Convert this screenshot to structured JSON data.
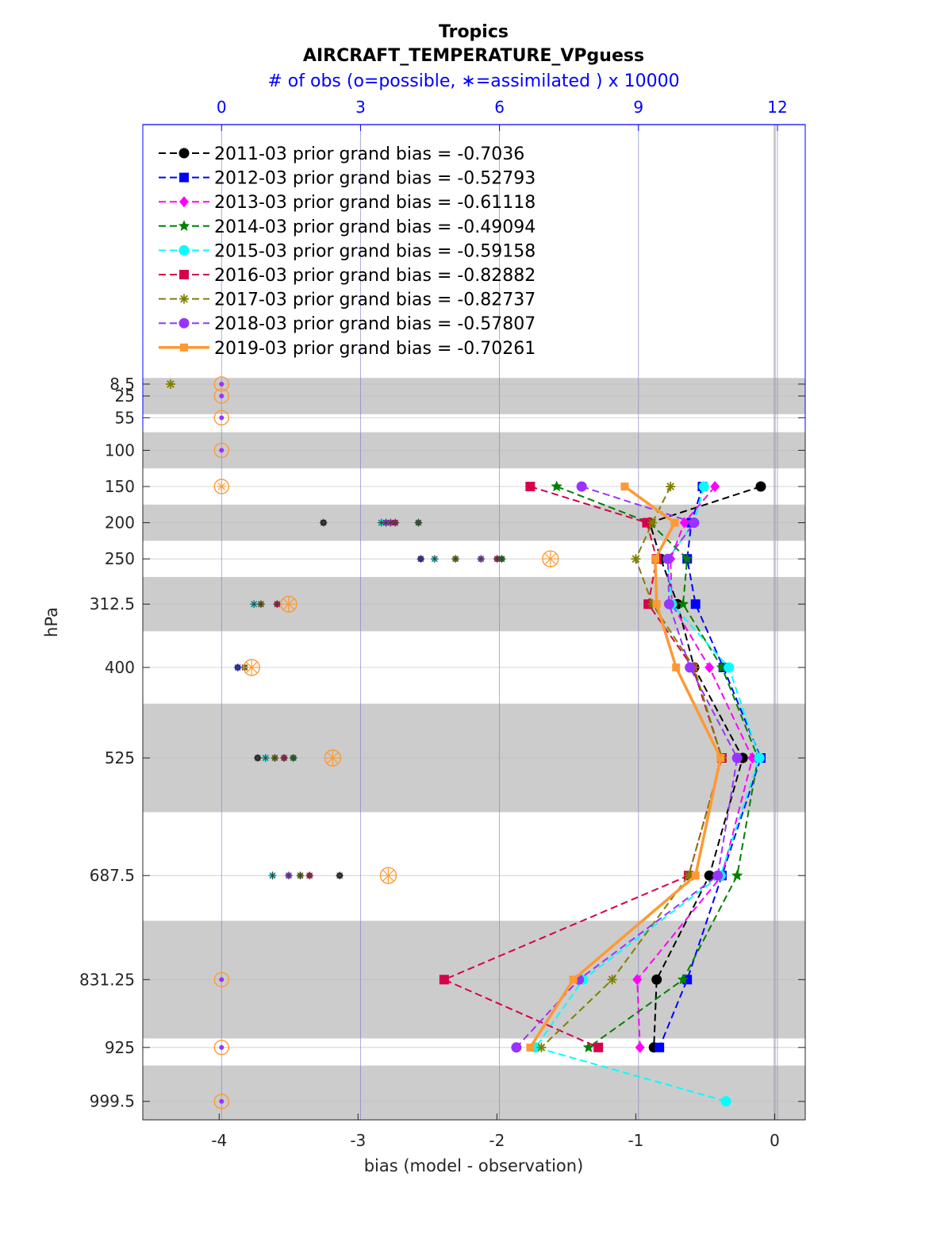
{
  "chart_data": {
    "type": "line",
    "title": "Tropics",
    "subtitle": "AIRCRAFT_TEMPERATURE_VPguess",
    "top_axis_label": "# of obs (o=possible, ∗=assimilated ) x 10000",
    "xlabel": "bias (model - observation)",
    "ylabel": "hPa",
    "xlim": [
      -4.55,
      0.22
    ],
    "x_ticks": [
      -4,
      -3,
      -2,
      -1,
      0
    ],
    "top_xlim": [
      -1.7,
      12.6
    ],
    "top_ticks": [
      0,
      3,
      6,
      9,
      12
    ],
    "y_scale": "linear, inverted",
    "ylim": [
      1025,
      -350
    ],
    "y_levels": [
      8.5,
      25,
      55,
      100,
      150,
      200,
      250,
      312.5,
      400,
      525,
      687.5,
      831.25,
      925,
      999.5
    ],
    "y_tick_labels": [
      "8.5",
      "25",
      "55",
      "100",
      "150",
      "200",
      "250",
      "312.5",
      "400",
      "525",
      "687.5",
      "831.25",
      "925",
      "999.5"
    ],
    "level_bands": [
      [
        0,
        50
      ],
      [
        75,
        125
      ],
      [
        175,
        225
      ],
      [
        275,
        350
      ],
      [
        450,
        600
      ],
      [
        750,
        912.5
      ],
      [
        950,
        1025
      ]
    ],
    "legend_position": "top-left",
    "series": [
      {
        "name": "2011-03 prior grand bias = -0.7036",
        "color": "#000000",
        "marker": "circle",
        "values": [
          null,
          null,
          null,
          null,
          -0.1,
          -0.9,
          -0.82,
          -0.7,
          -0.58,
          -0.23,
          -0.47,
          -0.85,
          -0.87,
          null
        ],
        "obs_assimilated": [
          null,
          null,
          null,
          null,
          null,
          2.2,
          null,
          null,
          null,
          null,
          null,
          null,
          null,
          null
        ]
      },
      {
        "name": "2012-03 prior grand bias = -0.52793",
        "color": "#0000ff",
        "marker": "square",
        "values": [
          null,
          null,
          null,
          null,
          -0.52,
          -0.6,
          -0.63,
          -0.57,
          -0.37,
          -0.1,
          -0.38,
          -0.63,
          -0.83,
          null
        ],
        "obs_assimilated": [
          null,
          null,
          null,
          null,
          null,
          null,
          null,
          null,
          null,
          null,
          null,
          null,
          null,
          null
        ]
      },
      {
        "name": "2013-03 prior grand bias = -0.61118",
        "color": "#ff00ff",
        "marker": "diamond",
        "values": [
          null,
          null,
          null,
          null,
          -0.43,
          -0.65,
          -0.75,
          -0.74,
          -0.47,
          -0.16,
          -0.38,
          -0.99,
          -0.97,
          null
        ],
        "obs_assimilated": [
          null,
          null,
          null,
          null,
          null,
          null,
          null,
          null,
          null,
          null,
          null,
          null,
          null,
          null
        ]
      },
      {
        "name": "2014-03 prior grand bias = -0.49094",
        "color": "#008000",
        "marker": "star",
        "values": [
          null,
          null,
          null,
          null,
          -1.57,
          -0.9,
          -0.63,
          -0.66,
          -0.38,
          -0.12,
          -0.27,
          -0.66,
          -1.34,
          null
        ],
        "obs_assimilated": [
          null,
          null,
          null,
          null,
          null,
          null,
          null,
          null,
          null,
          null,
          null,
          null,
          null,
          null
        ]
      },
      {
        "name": "2015-03 prior grand bias = -0.59158",
        "color": "#00ffff",
        "marker": "circle",
        "values": [
          null,
          null,
          null,
          null,
          -0.51,
          -0.58,
          -0.77,
          -0.74,
          -0.33,
          -0.11,
          -0.39,
          -1.38,
          -1.72,
          -0.35
        ],
        "obs_assimilated": [
          null,
          null,
          null,
          null,
          null,
          null,
          null,
          null,
          null,
          null,
          null,
          null,
          null,
          null
        ]
      },
      {
        "name": "2016-03 prior grand bias = -0.82882",
        "color": "#d6004c",
        "marker": "square",
        "values": [
          null,
          null,
          null,
          null,
          -1.76,
          -0.92,
          -0.85,
          -0.91,
          -0.59,
          -0.38,
          -0.62,
          -2.38,
          -1.27,
          null
        ],
        "obs_assimilated": [
          null,
          null,
          null,
          null,
          null,
          null,
          null,
          null,
          null,
          null,
          null,
          null,
          null,
          null
        ]
      },
      {
        "name": "2017-03 prior grand bias = -0.82737",
        "color": "#808000",
        "marker": "asterisk",
        "values": [
          -4.35,
          null,
          null,
          null,
          -0.75,
          -0.88,
          -1.0,
          -0.88,
          -0.58,
          -0.38,
          -0.62,
          -1.17,
          -1.68,
          null
        ],
        "obs_assimilated": [
          null,
          null,
          null,
          null,
          null,
          null,
          null,
          null,
          null,
          null,
          null,
          null,
          null,
          null
        ]
      },
      {
        "name": "2018-03 prior grand bias = -0.57807",
        "color": "#9933ff",
        "marker": "circle",
        "values": [
          null,
          null,
          null,
          null,
          -1.39,
          -0.58,
          -0.77,
          -0.76,
          -0.61,
          -0.27,
          -0.41,
          -1.41,
          -1.86,
          null
        ],
        "obs_assimilated": [
          null,
          null,
          null,
          null,
          null,
          null,
          null,
          null,
          null,
          null,
          null,
          null,
          null,
          null
        ]
      },
      {
        "name": "2019-03 prior grand bias = -0.70261",
        "color": "#ff9933",
        "marker": "square",
        "linewidth": 3.5,
        "values": [
          null,
          null,
          null,
          null,
          -1.08,
          -0.72,
          -0.86,
          -0.85,
          -0.71,
          -0.39,
          -0.57,
          -1.45,
          -1.76,
          null
        ],
        "obs_assimilated": [
          null,
          null,
          null,
          null,
          null,
          null,
          null,
          null,
          null,
          null,
          null,
          null,
          null,
          null
        ]
      }
    ],
    "obs_points": [
      {
        "level": 150,
        "color": "#ff9933",
        "possible": 0.0,
        "assimilated": 0.0
      },
      {
        "level": 200,
        "color": "#000000",
        "assimilated": 2.2
      },
      {
        "level": 200,
        "color": "#00ffff",
        "assimilated": 3.45
      },
      {
        "level": 200,
        "color": "#9933ff",
        "assimilated": 3.55
      },
      {
        "level": 200,
        "color": "#ff00ff",
        "assimilated": 3.65
      },
      {
        "level": 200,
        "color": "#d6004c",
        "assimilated": 3.75
      },
      {
        "level": 200,
        "color": "#008000",
        "assimilated": 4.25
      },
      {
        "level": 250,
        "color": "#0000ff",
        "assimilated": 4.3
      },
      {
        "level": 250,
        "color": "#00ffff",
        "assimilated": 4.6
      },
      {
        "level": 250,
        "color": "#808000",
        "assimilated": 5.05
      },
      {
        "level": 250,
        "color": "#9933ff",
        "assimilated": 5.6
      },
      {
        "level": 250,
        "color": "#d6004c",
        "assimilated": 5.95
      },
      {
        "level": 250,
        "color": "#008000",
        "assimilated": 6.05
      },
      {
        "level": 250,
        "color": "#ff9933",
        "possible": 7.1,
        "assimilated": 7.1
      },
      {
        "level": 312.5,
        "color": "#00ffff",
        "assimilated": 0.7
      },
      {
        "level": 312.5,
        "color": "#808000",
        "assimilated": 0.85
      },
      {
        "level": 312.5,
        "color": "#d6004c",
        "assimilated": 1.2
      },
      {
        "level": 312.5,
        "color": "#ff9933",
        "possible": 1.45,
        "assimilated": 1.45
      },
      {
        "level": 400,
        "color": "#0000ff",
        "assimilated": 0.35
      },
      {
        "level": 400,
        "color": "#808000",
        "assimilated": 0.5
      },
      {
        "level": 400,
        "color": "#ff9933",
        "possible": 0.65,
        "assimilated": 0.65
      },
      {
        "level": 525,
        "color": "#000000",
        "assimilated": 0.78
      },
      {
        "level": 525,
        "color": "#00ffff",
        "assimilated": 0.95
      },
      {
        "level": 525,
        "color": "#808000",
        "assimilated": 1.15
      },
      {
        "level": 525,
        "color": "#d6004c",
        "assimilated": 1.35
      },
      {
        "level": 525,
        "color": "#008000",
        "assimilated": 1.55
      },
      {
        "level": 525,
        "color": "#ff9933",
        "possible": 2.4,
        "assimilated": 2.4
      },
      {
        "level": 687.5,
        "color": "#00ffff",
        "assimilated": 1.1
      },
      {
        "level": 687.5,
        "color": "#9933ff",
        "assimilated": 1.45
      },
      {
        "level": 687.5,
        "color": "#808000",
        "assimilated": 1.7
      },
      {
        "level": 687.5,
        "color": "#d6004c",
        "assimilated": 1.9
      },
      {
        "level": 687.5,
        "color": "#000000",
        "assimilated": 2.55
      },
      {
        "level": 687.5,
        "color": "#ff9933",
        "possible": 3.6,
        "assimilated": 3.6
      },
      {
        "level": 8.5,
        "color": "#ff9933",
        "possible": 0.0
      },
      {
        "level": 25,
        "color": "#ff9933",
        "possible": 0.0
      },
      {
        "level": 55,
        "color": "#ff9933",
        "possible": 0.0
      },
      {
        "level": 100,
        "color": "#ff9933",
        "possible": 0.0
      },
      {
        "level": 831.25,
        "color": "#ff9933",
        "possible": 0.0
      },
      {
        "level": 925,
        "color": "#ff9933",
        "possible": 0.0
      },
      {
        "level": 999.5,
        "color": "#ff9933",
        "possible": 0.0
      }
    ]
  }
}
